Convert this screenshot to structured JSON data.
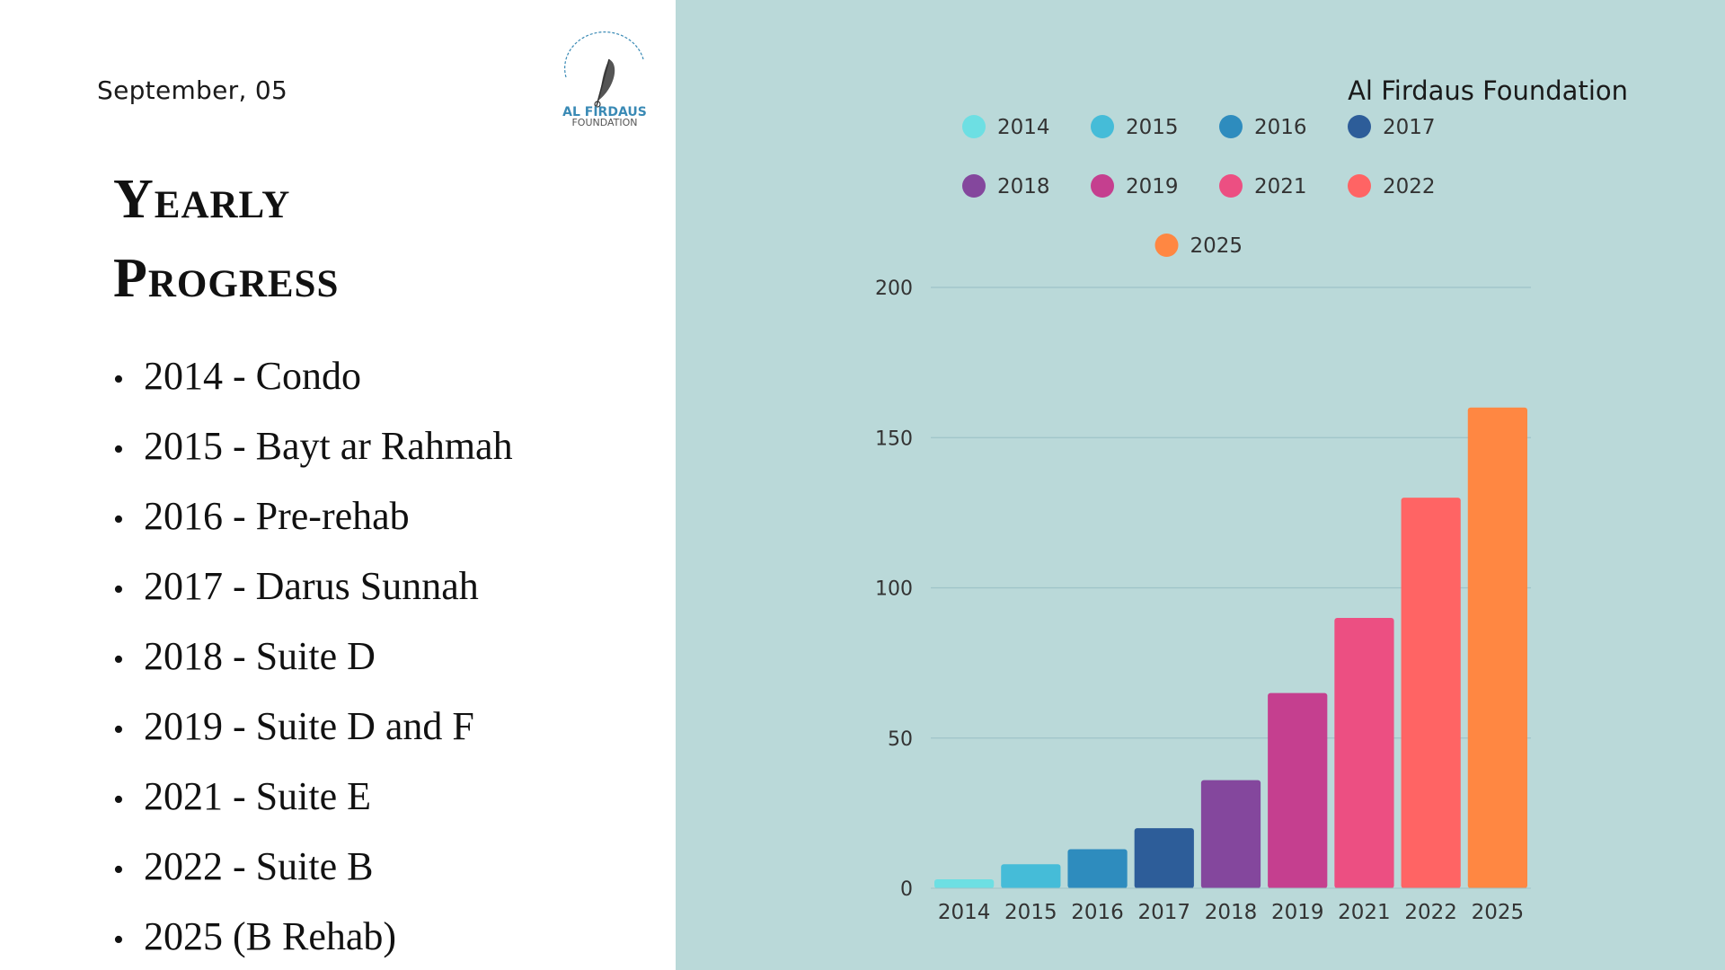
{
  "date": "September, 05",
  "title_lines": [
    "Yearly",
    "Progress"
  ],
  "progress_items": [
    "2014 - Condo",
    "2015 - Bayt ar Rahmah",
    "2016 - Pre-rehab",
    "2017 - Darus Sunnah",
    "2018 - Suite D",
    "2019 - Suite D and F",
    "2021 - Suite E",
    "2022 - Suite B",
    "2025 (B Rehab)"
  ],
  "logo": {
    "line1": "AL FIRDAUS",
    "line2": "FOUNDATION",
    "icon": "quill-feather-icon"
  },
  "org_name": "Al Firdaus Foundation",
  "colors": {
    "panel_bg": "#bad9d9",
    "logo_text": "#3a8ab5"
  },
  "chart_data": {
    "type": "bar",
    "categories": [
      "2014",
      "2015",
      "2016",
      "2017",
      "2018",
      "2019",
      "2021",
      "2022",
      "2025"
    ],
    "values": [
      3,
      8,
      13,
      20,
      36,
      65,
      90,
      130,
      160
    ],
    "colors": [
      "#6ddfe3",
      "#45bcd8",
      "#2e8cbe",
      "#2d5d99",
      "#84479d",
      "#c53f8f",
      "#ec4f82",
      "#ff6464",
      "#ff8742"
    ],
    "title": "",
    "xlabel": "",
    "ylabel": "",
    "ylim": [
      0,
      200
    ],
    "yticks": [
      0,
      50,
      100,
      150,
      200
    ],
    "grid": true,
    "legend": [
      "2014",
      "2015",
      "2016",
      "2017",
      "2018",
      "2019",
      "2021",
      "2022",
      "2025"
    ],
    "legend_position": "top"
  }
}
